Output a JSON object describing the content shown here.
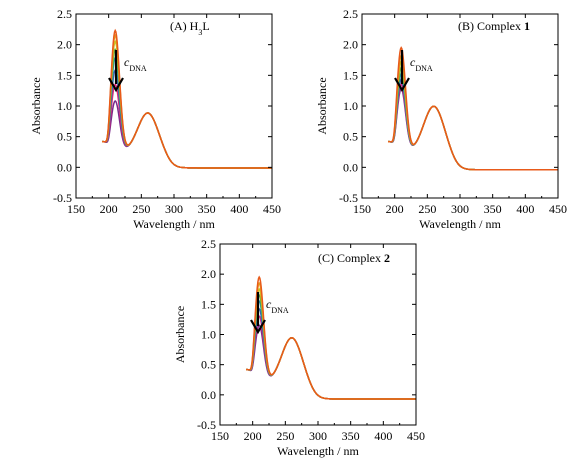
{
  "chart_data": [
    {
      "type": "line",
      "title": "(A) H3L",
      "title_parts": {
        "main": "(A) H",
        "sub": "3",
        "tail": "L",
        "bold": ""
      },
      "annotation": {
        "text": "c",
        "sub": "DNA"
      },
      "xlabel": "Wavelength / nm",
      "ylabel": "Absorbance",
      "xlim": [
        150,
        450
      ],
      "ylim": [
        -0.5,
        2.5
      ],
      "xticks": [
        150,
        200,
        250,
        300,
        350,
        400,
        450
      ],
      "yticks": [
        -0.5,
        0.0,
        0.5,
        1.0,
        1.5,
        2.0,
        2.5
      ],
      "x_range": [
        190,
        450
      ],
      "grid": false,
      "legend": "none",
      "series": [
        {
          "color": "#7a2a8a",
          "peak1": 1.28,
          "valley": 0.44,
          "peak2": 0.97,
          "tail": -0.01
        },
        {
          "color": "#e0287a",
          "peak1": 1.55,
          "valley": 0.44,
          "peak2": 0.97,
          "tail": -0.01
        },
        {
          "color": "#3a5fb0",
          "peak1": 1.78,
          "valley": 0.44,
          "peak2": 0.97,
          "tail": -0.01
        },
        {
          "color": "#1f9aa8",
          "peak1": 1.98,
          "valley": 0.44,
          "peak2": 0.97,
          "tail": -0.01
        },
        {
          "color": "#5aaa3a",
          "peak1": 2.12,
          "valley": 0.44,
          "peak2": 0.97,
          "tail": -0.01
        },
        {
          "color": "#c8c820",
          "peak1": 2.25,
          "valley": 0.44,
          "peak2": 0.97,
          "tail": -0.01
        },
        {
          "color": "#e89a20",
          "peak1": 2.35,
          "valley": 0.44,
          "peak2": 0.97,
          "tail": -0.01
        },
        {
          "color": "#e85a1a",
          "peak1": 2.43,
          "valley": 0.44,
          "peak2": 0.97,
          "tail": -0.01
        }
      ]
    },
    {
      "type": "line",
      "title": "(B) Complex 1",
      "title_parts": {
        "main": "(B) Complex ",
        "sub": "",
        "tail": "",
        "bold": "1"
      },
      "annotation": {
        "text": "c",
        "sub": "DNA"
      },
      "xlabel": "Wavelength / nm",
      "ylabel": "Absorbance",
      "xlim": [
        150,
        450
      ],
      "ylim": [
        -0.5,
        2.5
      ],
      "xticks": [
        150,
        200,
        250,
        300,
        350,
        400,
        450
      ],
      "yticks": [
        -0.5,
        0.0,
        0.5,
        1.0,
        1.5,
        2.0,
        2.5
      ],
      "x_range": [
        190,
        450
      ],
      "grid": false,
      "legend": "none",
      "series": [
        {
          "color": "#7a2a8a",
          "peak1": 1.48,
          "valley": 0.44,
          "peak2": 1.08,
          "tail": -0.04
        },
        {
          "color": "#e0287a",
          "peak1": 1.55,
          "valley": 0.44,
          "peak2": 1.08,
          "tail": -0.04
        },
        {
          "color": "#3a5fb0",
          "peak1": 1.63,
          "valley": 0.44,
          "peak2": 1.08,
          "tail": -0.04
        },
        {
          "color": "#1f9aa8",
          "peak1": 1.72,
          "valley": 0.44,
          "peak2": 1.08,
          "tail": -0.04
        },
        {
          "color": "#5aaa3a",
          "peak1": 1.82,
          "valley": 0.44,
          "peak2": 1.08,
          "tail": -0.04
        },
        {
          "color": "#c8c820",
          "peak1": 1.92,
          "valley": 0.44,
          "peak2": 1.08,
          "tail": -0.04
        },
        {
          "color": "#e89a20",
          "peak1": 2.02,
          "valley": 0.44,
          "peak2": 1.08,
          "tail": -0.04
        },
        {
          "color": "#e85a1a",
          "peak1": 2.15,
          "valley": 0.44,
          "peak2": 1.08,
          "tail": -0.04
        }
      ]
    },
    {
      "type": "line",
      "title": "(C) Complex 2",
      "title_parts": {
        "main": "(C) Complex ",
        "sub": "",
        "tail": "",
        "bold": "2"
      },
      "annotation": {
        "text": "c",
        "sub": "DNA"
      },
      "xlabel": "Wavelength / nm",
      "ylabel": "Absorbance",
      "xlim": [
        150,
        450
      ],
      "ylim": [
        -0.5,
        2.5
      ],
      "xticks": [
        150,
        200,
        250,
        300,
        350,
        400,
        450
      ],
      "yticks": [
        -0.5,
        0.0,
        0.5,
        1.0,
        1.5,
        2.0,
        2.5
      ],
      "x_range": [
        190,
        450
      ],
      "grid": false,
      "legend": "none",
      "series": [
        {
          "color": "#7a2a8a",
          "peak1": 1.35,
          "valley": 0.4,
          "peak2": 1.03,
          "tail": -0.07
        },
        {
          "color": "#e0287a",
          "peak1": 1.5,
          "valley": 0.4,
          "peak2": 1.03,
          "tail": -0.07
        },
        {
          "color": "#3a5fb0",
          "peak1": 1.62,
          "valley": 0.4,
          "peak2": 1.03,
          "tail": -0.07
        },
        {
          "color": "#1f9aa8",
          "peak1": 1.75,
          "valley": 0.4,
          "peak2": 1.03,
          "tail": -0.07
        },
        {
          "color": "#5aaa3a",
          "peak1": 1.85,
          "valley": 0.4,
          "peak2": 1.03,
          "tail": -0.07
        },
        {
          "color": "#c8c820",
          "peak1": 1.95,
          "valley": 0.4,
          "peak2": 1.03,
          "tail": -0.07
        },
        {
          "color": "#e89a20",
          "peak1": 2.05,
          "valley": 0.4,
          "peak2": 1.03,
          "tail": -0.07
        },
        {
          "color": "#e85a1a",
          "peak1": 2.15,
          "valley": 0.4,
          "peak2": 1.03,
          "tail": -0.07
        }
      ]
    }
  ]
}
